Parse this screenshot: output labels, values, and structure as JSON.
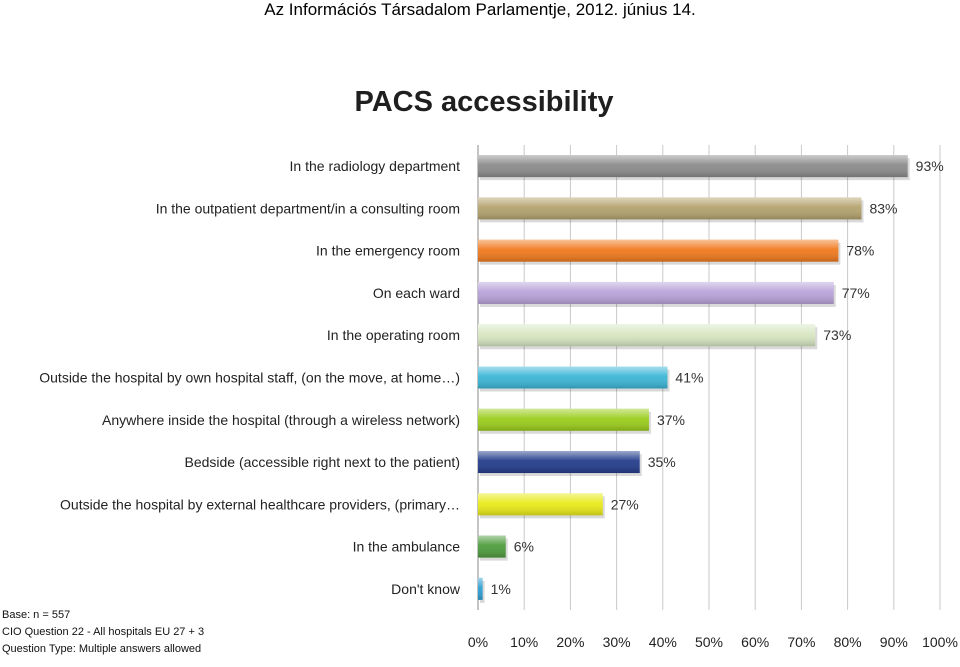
{
  "header": {
    "title": "Az Információs Társadalom Parlamentje, 2012. június 14."
  },
  "chart_data": {
    "type": "bar",
    "orientation": "horizontal",
    "title": "PACS accessibility",
    "categories": [
      "In the radiology department",
      "In the outpatient department/in a consulting room",
      "In the emergency room",
      "On each ward",
      "In the operating room",
      "Outside the hospital  by own hospital staff,  (on the move,  at home…)",
      "Anywhere inside the hospital  (through a wireless network)",
      "Bedside (accessible right next to the patient)",
      "Outside the hospital  by external healthcare providers, (primary…",
      "In the ambulance",
      "Don't know"
    ],
    "values": [
      93,
      83,
      78,
      77,
      73,
      41,
      37,
      35,
      27,
      6,
      1
    ],
    "data_labels": [
      "93%",
      "83%",
      "78%",
      "77%",
      "73%",
      "41%",
      "37%",
      "35%",
      "27%",
      "6%",
      "1%"
    ],
    "bar_colors": [
      "#8c8c8c",
      "#b5a36e",
      "#f07a1e",
      "#b9a3d9",
      "#d7e6c2",
      "#3cb6d6",
      "#9ccd1c",
      "#243d8c",
      "#e8ea1a",
      "#4e9c3e",
      "#2f9fd3"
    ],
    "xlim": [
      0,
      100
    ],
    "x_ticks": [
      "0%",
      "10%",
      "20%",
      "30%",
      "40%",
      "50%",
      "60%",
      "70%",
      "80%",
      "90%",
      "100%"
    ],
    "grid": true
  },
  "notes": {
    "base": "Base: n = 557",
    "question": "CIO Question 22 - All hospitals EU 27 + 3",
    "type": "Question Type: Multiple answers allowed"
  }
}
